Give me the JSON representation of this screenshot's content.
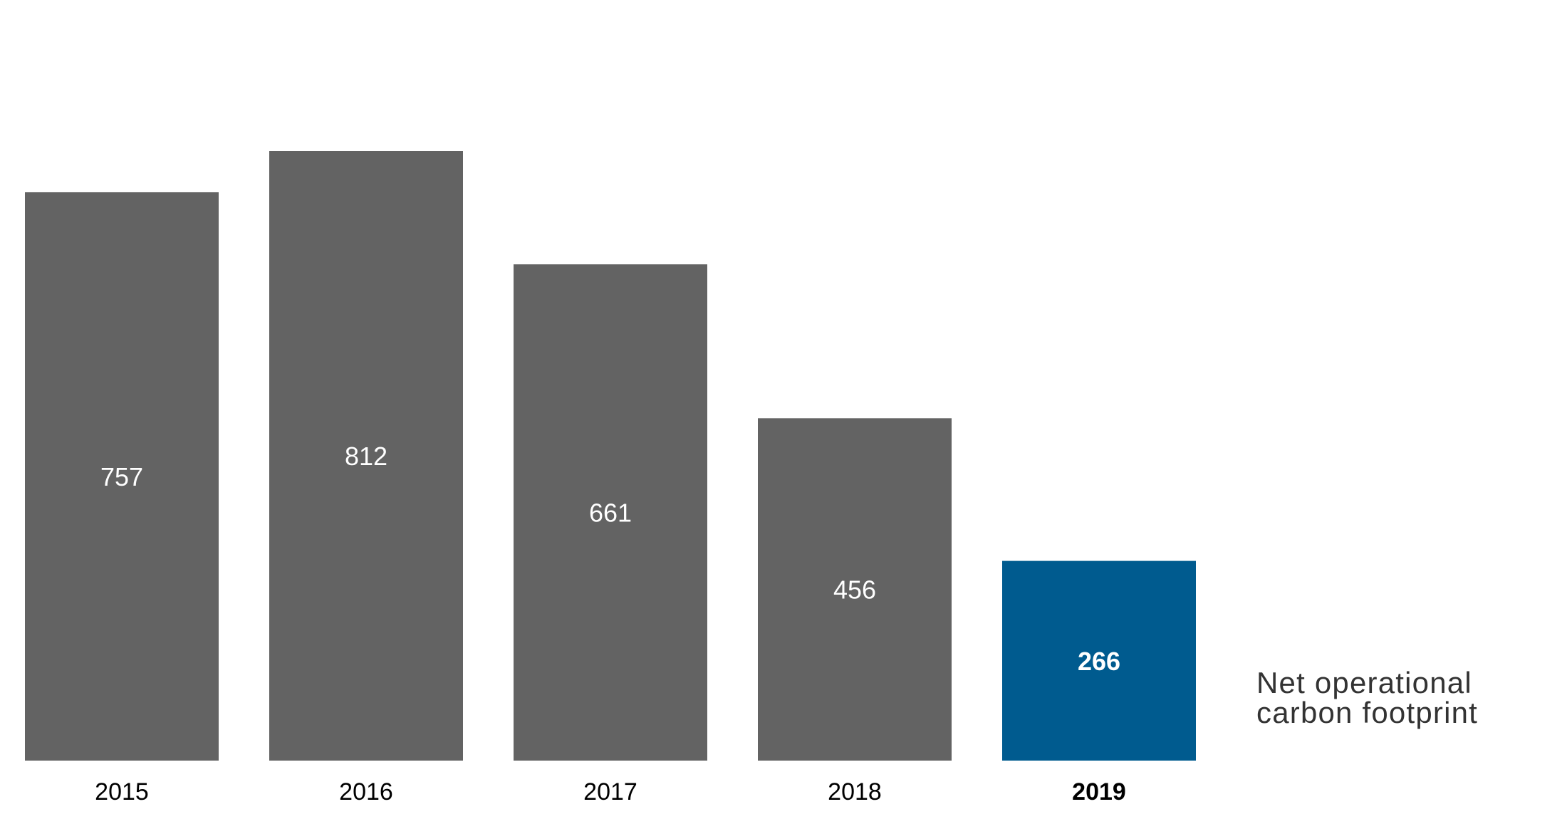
{
  "chart_data": {
    "type": "bar",
    "categories": [
      "2015",
      "2016",
      "2017",
      "2018",
      "2019"
    ],
    "values": [
      757,
      812,
      661,
      456,
      266
    ],
    "highlight_index": 4,
    "title": "",
    "xlabel": "",
    "ylabel": "",
    "ylim": [
      0,
      812
    ],
    "grid": false,
    "series_label": [
      "Net operational",
      "carbon footprint"
    ],
    "colors": {
      "bar": "#636363",
      "highlight": "#005b8f",
      "value_label": "#ffffff",
      "tick_label": "#000000",
      "series_label": "#333333"
    }
  }
}
